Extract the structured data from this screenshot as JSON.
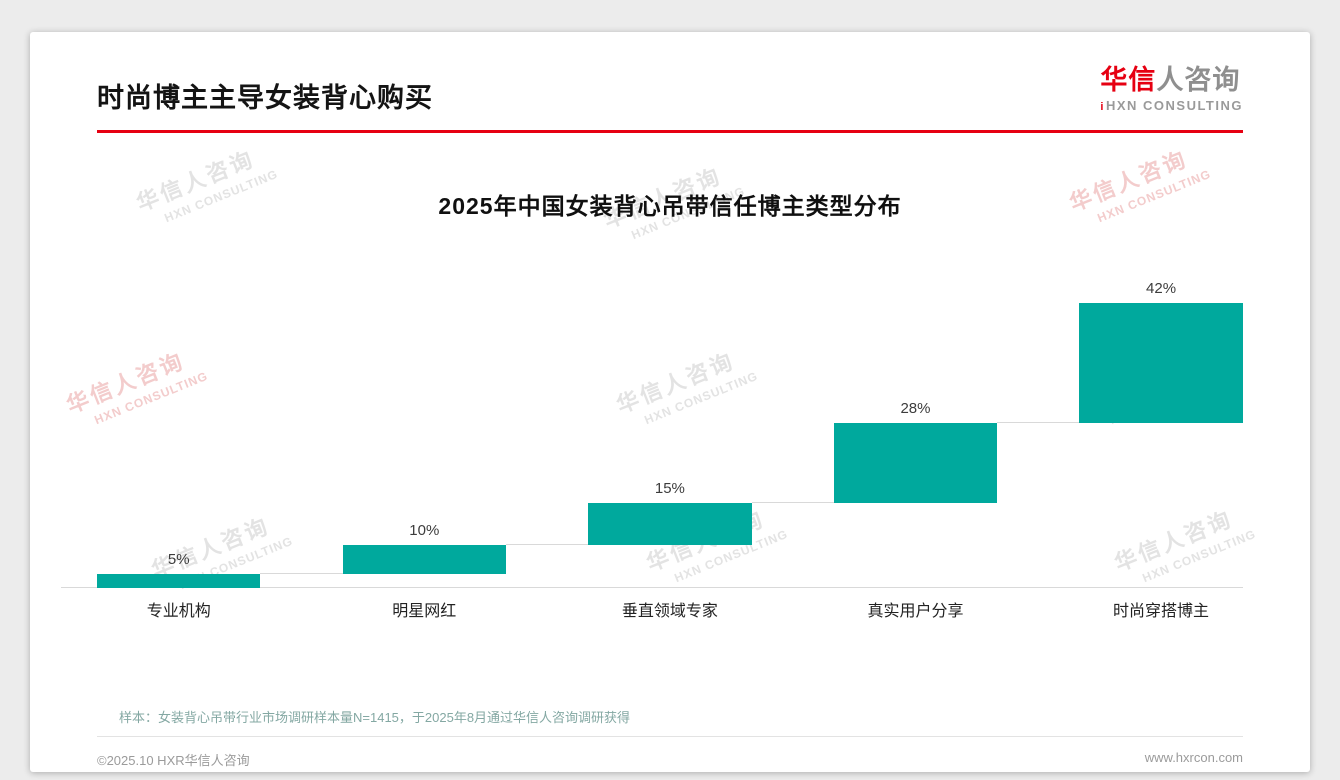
{
  "header": {
    "title": "时尚博主主导女装背心购买"
  },
  "logo": {
    "name_red": "华信",
    "name_gray": "人咨询",
    "mark": "i",
    "subtitle": "HXN CONSULTING"
  },
  "watermark": {
    "line1": "华信人咨询",
    "line2": "HXN CONSULTING"
  },
  "chart_data": {
    "type": "bar",
    "subtype": "waterfall",
    "title": "2025年中国女装背心吊带信任博主类型分布",
    "categories": [
      "专业机构",
      "明星网红",
      "垂直领域专家",
      "真实用户分享",
      "时尚穿搭博主"
    ],
    "values": [
      5,
      10,
      15,
      28,
      42
    ],
    "labels": [
      "5%",
      "10%",
      "15%",
      "28%",
      "42%"
    ],
    "cumulative": [
      5,
      15,
      30,
      58,
      100
    ],
    "unit": "%",
    "ylim": [
      0,
      100
    ],
    "bar_color": "#00A99D",
    "connector_color": "#d9d9d9",
    "gridlines": false,
    "legend": "none"
  },
  "note": "样本：女装背心吊带行业市场调研样本量N=1415，于2025年8月通过华信人咨询调研获得",
  "footer": {
    "left": "©2025.10 HXR华信人咨询",
    "right": "www.hxrcon.com"
  }
}
